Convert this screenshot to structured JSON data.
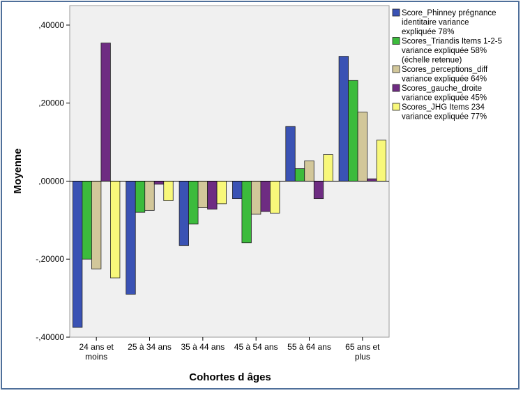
{
  "chart_data": {
    "type": "bar",
    "title": "",
    "xlabel": "Cohortes d âges",
    "ylabel": "Moyenne",
    "ylim": [
      -0.4,
      0.45
    ],
    "yticks": [
      0.4,
      0.2,
      0.0,
      -0.2,
      -0.4
    ],
    "ytick_labels": [
      ",40000",
      ",20000",
      ",00000",
      "-,20000",
      "-,40000"
    ],
    "grid": false,
    "legend": "right",
    "categories": [
      [
        "24 ans et",
        "moins"
      ],
      [
        "25 à 34 ans"
      ],
      [
        "35 à 44 ans"
      ],
      [
        "45 à 54 ans"
      ],
      [
        "55 à 64 ans"
      ],
      [
        "65 ans et",
        "plus"
      ]
    ],
    "series": [
      {
        "name": "Score_Phinney prégnance identitaire variance expliquée 78%",
        "legend_lines": [
          "Score_Phinney prégnance",
          "identitaire variance",
          "expliquée 78%"
        ],
        "color": "#3a52b4",
        "values": [
          -0.375,
          -0.29,
          -0.165,
          -0.045,
          0.14,
          0.32
        ]
      },
      {
        "name": "Scores_Triandis Items 1-2-5 variance expliquée 58% (échelle retenue)",
        "legend_lines": [
          "Scores_Triandis Items 1-2-5",
          "variance expliquée 58%",
          "(échelle retenue)"
        ],
        "color": "#3cbb3c",
        "values": [
          -0.2,
          -0.08,
          -0.11,
          -0.158,
          0.032,
          0.258
        ]
      },
      {
        "name": "Scores_perceptions_diff variance expliquée 64%",
        "legend_lines": [
          "Scores_perceptions_diff",
          "variance expliquée 64%"
        ],
        "color": "#d2c79a",
        "values": [
          -0.225,
          -0.075,
          -0.068,
          -0.085,
          0.052,
          0.177
        ]
      },
      {
        "name": "Scores_gauche_droite variance expliquée 45%",
        "legend_lines": [
          "Scores_gauche_droite",
          "variance expliquée 45%"
        ],
        "color": "#6e2c82",
        "values": [
          0.354,
          -0.008,
          -0.072,
          -0.078,
          -0.045,
          0.006
        ]
      },
      {
        "name": "Scores_JHG Items 234 variance expliquée 77%",
        "legend_lines": [
          "Scores_JHG Items 234",
          "variance expliquée 77%"
        ],
        "color": "#f8f87a",
        "values": [
          -0.248,
          -0.05,
          -0.058,
          -0.082,
          0.068,
          0.105
        ]
      }
    ]
  }
}
